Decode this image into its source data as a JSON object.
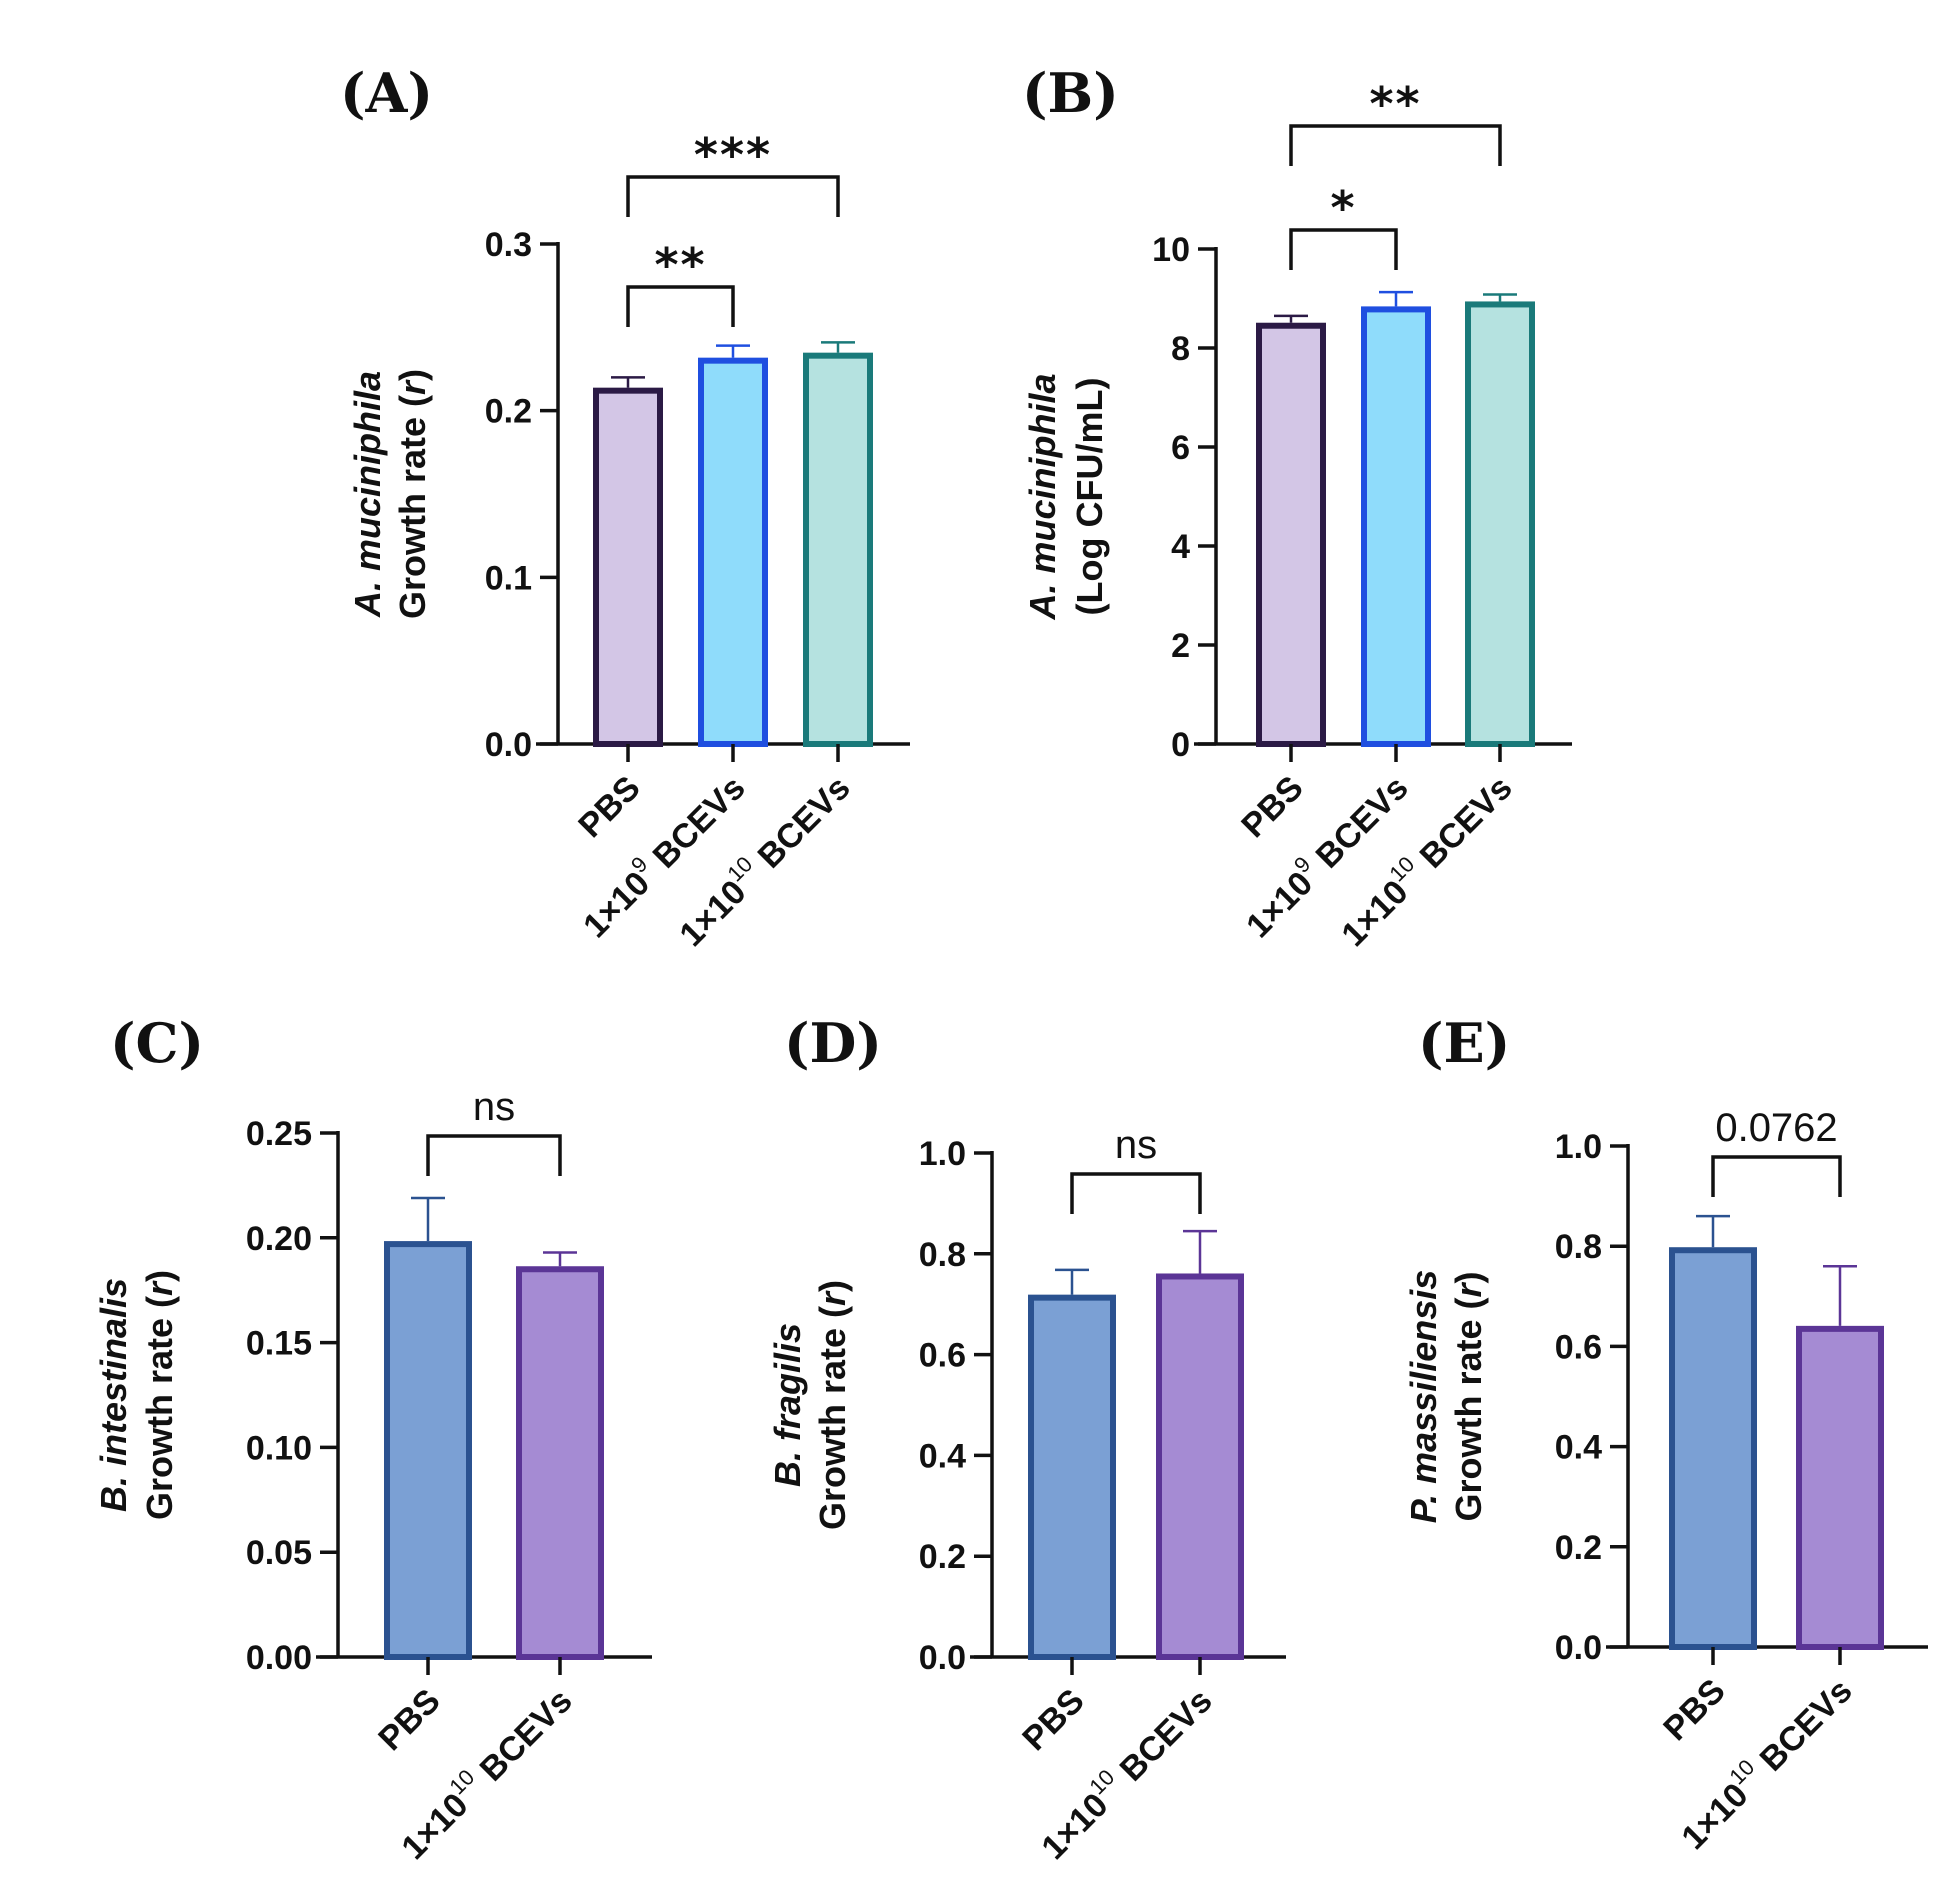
{
  "chart_data": [
    {
      "panel": "(A)",
      "type": "bar",
      "ylabel_italic": "A. muciniphila",
      "ylabel": "Growth rate (r)",
      "ylabel_prefix": "Growth rate (",
      "ylabel_var": "r",
      "ylabel_suffix": ")",
      "ylim": [
        0,
        0.3
      ],
      "yticks": [
        "0.0",
        "0.1",
        "0.2",
        "0.3"
      ],
      "categories": [
        {
          "main": "PBS",
          "pre": "",
          "sup": "",
          "post": ""
        },
        {
          "main": "",
          "pre": "1×10",
          "sup": "9",
          "post": " BCEVs"
        },
        {
          "main": "",
          "pre": "1×10",
          "sup": "10",
          "post": " BCEVs"
        }
      ],
      "values": [
        0.212,
        0.23,
        0.233
      ],
      "errors": [
        0.008,
        0.009,
        0.008
      ],
      "fill_colors": [
        "#d3c6e6",
        "#8fdcfb",
        "#b5e2e0"
      ],
      "edge_colors": [
        "#2b1a45",
        "#1f4fe0",
        "#1a7a7a"
      ],
      "error_colors": [
        "#2b1a45",
        "#1f4fe0",
        "#1a7a7a"
      ],
      "comparisons": [
        {
          "from": 0,
          "to": 1,
          "label": "**",
          "level": 0
        },
        {
          "from": 0,
          "to": 2,
          "label": "***",
          "level": 1
        }
      ]
    },
    {
      "panel": "(B)",
      "type": "bar",
      "ylabel_italic": "A. muciniphila",
      "ylabel": "(Log CFU/mL)",
      "ylabel_prefix": "(Log CFU/mL)",
      "ylabel_var": "",
      "ylabel_suffix": "",
      "ylim": [
        0,
        10
      ],
      "yticks": [
        "0",
        "2",
        "4",
        "6",
        "8",
        "10"
      ],
      "categories": [
        {
          "main": "PBS",
          "pre": "",
          "sup": "",
          "post": ""
        },
        {
          "main": "",
          "pre": "1×10",
          "sup": "9",
          "post": " BCEVs"
        },
        {
          "main": "",
          "pre": "1×10",
          "sup": "10",
          "post": " BCEVs"
        }
      ],
      "values": [
        8.45,
        8.78,
        8.88
      ],
      "errors": [
        0.2,
        0.35,
        0.2
      ],
      "fill_colors": [
        "#d3c6e6",
        "#8fdcfb",
        "#b5e2e0"
      ],
      "edge_colors": [
        "#2b1a45",
        "#1f4fe0",
        "#1a7a7a"
      ],
      "error_colors": [
        "#2b1a45",
        "#1f4fe0",
        "#1a7a7a"
      ],
      "comparisons": [
        {
          "from": 0,
          "to": 1,
          "label": "*",
          "level": 0
        },
        {
          "from": 0,
          "to": 2,
          "label": "**",
          "level": 1
        }
      ]
    },
    {
      "panel": "(C)",
      "type": "bar",
      "ylabel_italic": "B. intestinalis",
      "ylabel": "Growth rate (r)",
      "ylabel_prefix": "Growth rate (",
      "ylabel_var": "r",
      "ylabel_suffix": ")",
      "ylim": [
        0,
        0.25
      ],
      "yticks": [
        "0.00",
        "0.05",
        "0.10",
        "0.15",
        "0.20",
        "0.25"
      ],
      "categories": [
        {
          "main": "PBS",
          "pre": "",
          "sup": "",
          "post": ""
        },
        {
          "main": "",
          "pre": "1×10",
          "sup": "10",
          "post": " BCEVs"
        }
      ],
      "values": [
        0.197,
        0.185
      ],
      "errors": [
        0.022,
        0.008
      ],
      "fill_colors": [
        "#7ba0d4",
        "#a58bd3"
      ],
      "edge_colors": [
        "#2b5290",
        "#5b3596"
      ],
      "error_colors": [
        "#2b5290",
        "#5b3596"
      ],
      "comparisons": [
        {
          "from": 0,
          "to": 1,
          "label": "ns",
          "level": 0
        }
      ]
    },
    {
      "panel": "(D)",
      "type": "bar",
      "ylabel_italic": "B. fragilis",
      "ylabel": "Growth rate (r)",
      "ylabel_prefix": "Growth rate (",
      "ylabel_var": "r",
      "ylabel_suffix": ")",
      "ylim": [
        0,
        1.0
      ],
      "yticks": [
        "0.0",
        "0.2",
        "0.4",
        "0.6",
        "0.8",
        "1.0"
      ],
      "categories": [
        {
          "main": "PBS",
          "pre": "",
          "sup": "",
          "post": ""
        },
        {
          "main": "",
          "pre": "1×10",
          "sup": "10",
          "post": " BCEVs"
        }
      ],
      "values": [
        0.713,
        0.755
      ],
      "errors": [
        0.055,
        0.09
      ],
      "fill_colors": [
        "#7ba0d4",
        "#a58bd3"
      ],
      "edge_colors": [
        "#2b5290",
        "#5b3596"
      ],
      "error_colors": [
        "#2b5290",
        "#5b3596"
      ],
      "comparisons": [
        {
          "from": 0,
          "to": 1,
          "label": "ns",
          "level": 0
        }
      ]
    },
    {
      "panel": "(E)",
      "type": "bar",
      "ylabel_italic": "P. massiliensis",
      "ylabel": "Growth rate (r)",
      "ylabel_prefix": "Growth rate (",
      "ylabel_var": "r",
      "ylabel_suffix": ")",
      "ylim": [
        0,
        1.0
      ],
      "yticks": [
        "0.0",
        "0.2",
        "0.4",
        "0.6",
        "0.8",
        "1.0"
      ],
      "categories": [
        {
          "main": "PBS",
          "pre": "",
          "sup": "",
          "post": ""
        },
        {
          "main": "",
          "pre": "1×10",
          "sup": "10",
          "post": " BCEVs"
        }
      ],
      "values": [
        0.792,
        0.635
      ],
      "errors": [
        0.068,
        0.125
      ],
      "fill_colors": [
        "#7ba0d4",
        "#a58bd3"
      ],
      "edge_colors": [
        "#2b5290",
        "#5b3596"
      ],
      "error_colors": [
        "#2b5290",
        "#5b3596"
      ],
      "comparisons": [
        {
          "from": 0,
          "to": 1,
          "label": "0.0762",
          "level": 0
        }
      ]
    }
  ]
}
